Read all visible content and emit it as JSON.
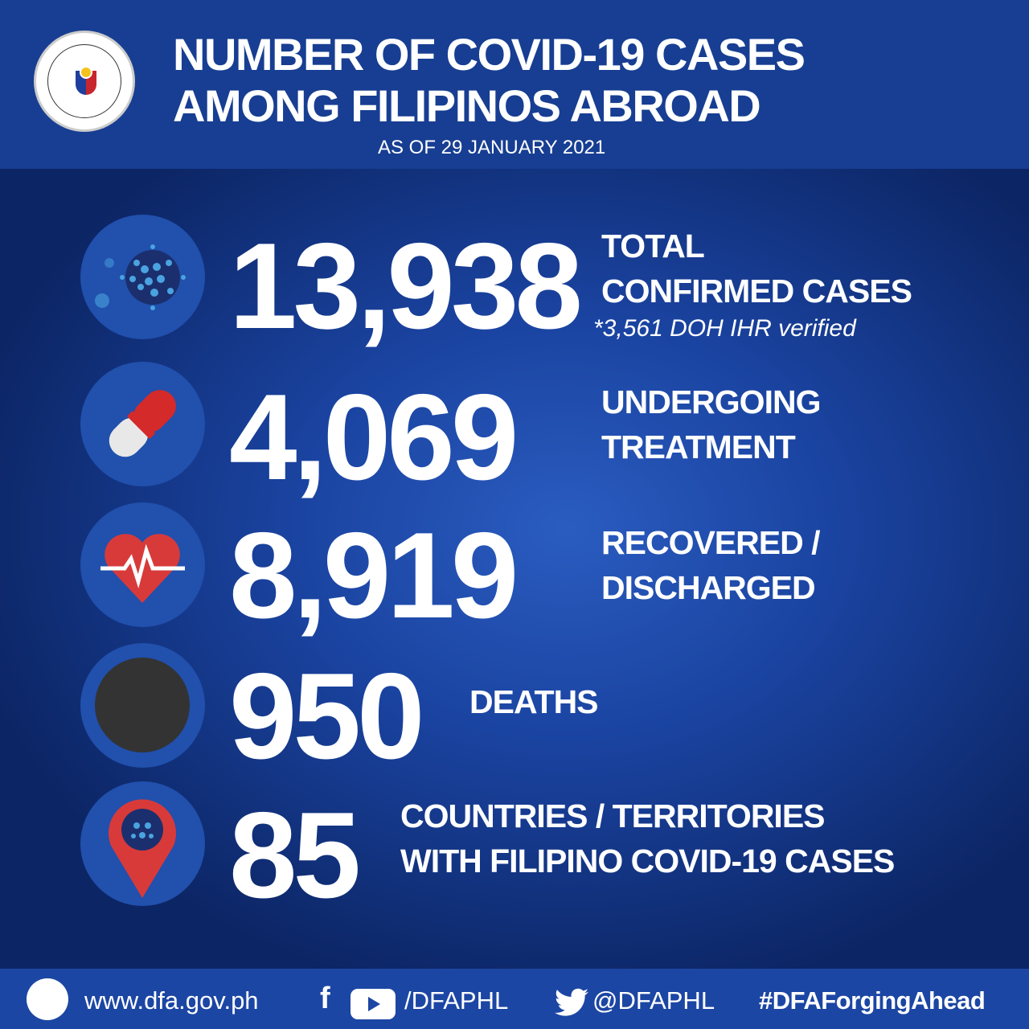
{
  "header": {
    "title_line1": "NUMBER OF  COVID-19 CASES",
    "title_line2": "AMONG FILIPINOS ABROAD",
    "date": "AS OF 29 JANUARY 2021",
    "seal": "Department of Foreign Affairs Philippines seal"
  },
  "stats": [
    {
      "value": "13,938",
      "label1": "TOTAL",
      "label2": "CONFIRMED CASES",
      "note": "*3,561 DOH IHR verified",
      "icon": "virus-icon"
    },
    {
      "value": "4,069",
      "label1": "UNDERGOING",
      "label2": "TREATMENT",
      "icon": "pill-icon"
    },
    {
      "value": "8,919",
      "label1": "RECOVERED /",
      "label2": "DISCHARGED",
      "icon": "heartbeat-icon"
    },
    {
      "value": "950",
      "label1": "DEATHS",
      "icon": "black-circle-icon"
    },
    {
      "value": "85",
      "label1": "COUNTRIES / TERRITORIES",
      "label2": "WITH FILIPINO COVID-19 CASES",
      "icon": "location-pin-virus-icon"
    }
  ],
  "footer": {
    "website": "www.dfa.gov.ph",
    "fb_yt": "/DFAPHL",
    "twitter": "@DFAPHL",
    "hashtag": "#DFAForgingAhead"
  },
  "colors": {
    "header": "#173e92",
    "footer": "#1c46a4",
    "pill_red": "#d42a2a",
    "heart_red": "#d83a3a",
    "virus_blue": "#4aa3e0"
  }
}
